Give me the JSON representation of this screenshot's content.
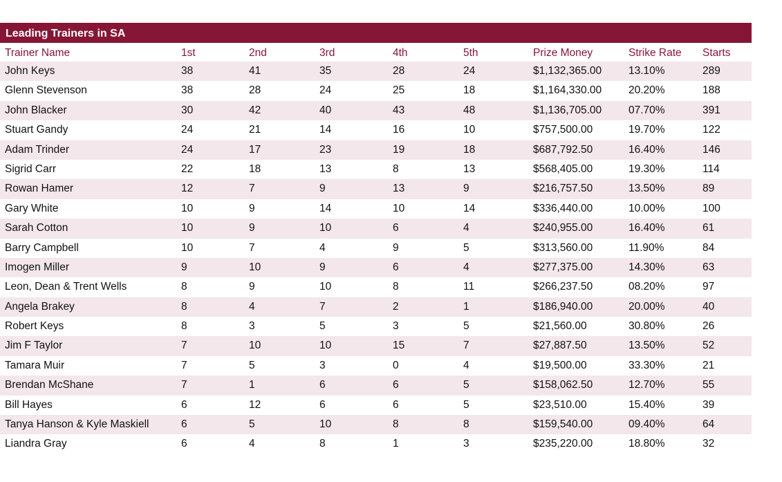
{
  "title": "Leading Trainers in SA",
  "colors": {
    "accent": "#861636",
    "row_shade": "#f3e7eb"
  },
  "columns": [
    "Trainer Name",
    "1st",
    "2nd",
    "3rd",
    "4th",
    "5th",
    "Prize Money",
    "Strike Rate",
    "Starts"
  ],
  "rows": [
    [
      "John Keys",
      "38",
      "41",
      "35",
      "28",
      "24",
      "$1,132,365.00",
      "13.10%",
      "289"
    ],
    [
      "Glenn Stevenson",
      "38",
      "28",
      "24",
      "25",
      "18",
      "$1,164,330.00",
      "20.20%",
      "188"
    ],
    [
      "John Blacker",
      "30",
      "42",
      "40",
      "43",
      "48",
      "$1,136,705.00",
      "07.70%",
      "391"
    ],
    [
      "Stuart Gandy",
      "24",
      "21",
      "14",
      "16",
      "10",
      "$757,500.00",
      "19.70%",
      "122"
    ],
    [
      "Adam Trinder",
      "24",
      "17",
      "23",
      "19",
      "18",
      "$687,792.50",
      "16.40%",
      "146"
    ],
    [
      "Sigrid Carr",
      "22",
      "18",
      "13",
      "8",
      "13",
      "$568,405.00",
      "19.30%",
      "114"
    ],
    [
      "Rowan Hamer",
      "12",
      "7",
      "9",
      "13",
      "9",
      "$216,757.50",
      "13.50%",
      "89"
    ],
    [
      "Gary White",
      "10",
      "9",
      "14",
      "10",
      "14",
      "$336,440.00",
      "10.00%",
      "100"
    ],
    [
      "Sarah Cotton",
      "10",
      "9",
      "10",
      "6",
      "4",
      "$240,955.00",
      "16.40%",
      "61"
    ],
    [
      "Barry Campbell",
      "10",
      "7",
      "4",
      "9",
      "5",
      "$313,560.00",
      "11.90%",
      "84"
    ],
    [
      "Imogen Miller",
      "9",
      "10",
      "9",
      "6",
      "4",
      "$277,375.00",
      "14.30%",
      "63"
    ],
    [
      "Leon, Dean & Trent Wells",
      "8",
      "9",
      "10",
      "8",
      "11",
      "$266,237.50",
      "08.20%",
      "97"
    ],
    [
      "Angela Brakey",
      "8",
      "4",
      "7",
      "2",
      "1",
      "$186,940.00",
      "20.00%",
      "40"
    ],
    [
      "Robert Keys",
      "8",
      "3",
      "5",
      "3",
      "5",
      "$21,560.00",
      "30.80%",
      "26"
    ],
    [
      "Jim F Taylor",
      "7",
      "10",
      "10",
      "15",
      "7",
      "$27,887.50",
      "13.50%",
      "52"
    ],
    [
      "Tamara Muir",
      "7",
      "5",
      "3",
      "0",
      "4",
      "$19,500.00",
      "33.30%",
      "21"
    ],
    [
      "Brendan McShane",
      "7",
      "1",
      "6",
      "6",
      "5",
      "$158,062.50",
      "12.70%",
      "55"
    ],
    [
      "Bill Hayes",
      "6",
      "12",
      "6",
      "6",
      "5",
      "$23,510.00",
      "15.40%",
      "39"
    ],
    [
      "Tanya Hanson & Kyle Maskiell",
      "6",
      "5",
      "10",
      "8",
      "8",
      "$159,540.00",
      "09.40%",
      "64"
    ],
    [
      "Liandra Gray",
      "6",
      "4",
      "8",
      "1",
      "3",
      "$235,220.00",
      "18.80%",
      "32"
    ]
  ]
}
